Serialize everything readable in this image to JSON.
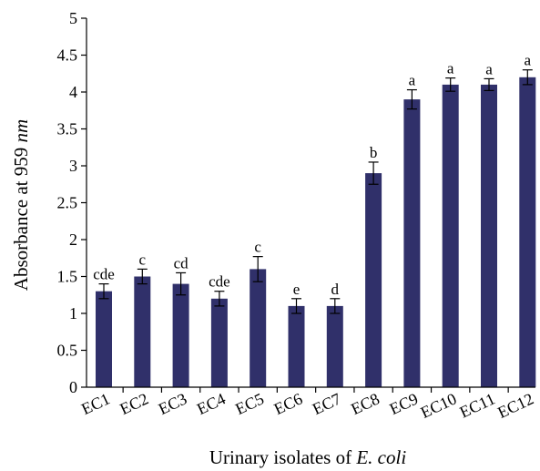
{
  "chart_data": {
    "type": "bar",
    "title": "",
    "xlabel": "Urinary isolates of ",
    "xlabel_italic": "E. coli",
    "ylabel": "Absorbance at 959 ",
    "ylabel_italic": "nm",
    "ylim": [
      0,
      5
    ],
    "yticks": [
      "0",
      "0.5",
      "1",
      "1.5",
      "2",
      "2.5",
      "3",
      "3.5",
      "4",
      "4.5",
      "5"
    ],
    "grid": false,
    "categories": [
      "EC1",
      "EC2",
      "EC3",
      "EC4",
      "EC5",
      "EC6",
      "EC7",
      "EC8",
      "EC9",
      "EC10",
      "EC11",
      "EC12"
    ],
    "values": [
      1.3,
      1.5,
      1.4,
      1.2,
      1.6,
      1.1,
      1.1,
      2.9,
      3.9,
      4.1,
      4.1,
      4.2
    ],
    "errors": [
      0.1,
      0.1,
      0.15,
      0.1,
      0.17,
      0.1,
      0.1,
      0.15,
      0.13,
      0.09,
      0.08,
      0.1
    ],
    "labels": [
      "cde",
      "c",
      "cd",
      "cde",
      "c",
      "e",
      "d",
      "b",
      "a",
      "a",
      "a",
      "a"
    ],
    "bar_color": "#30306a"
  }
}
